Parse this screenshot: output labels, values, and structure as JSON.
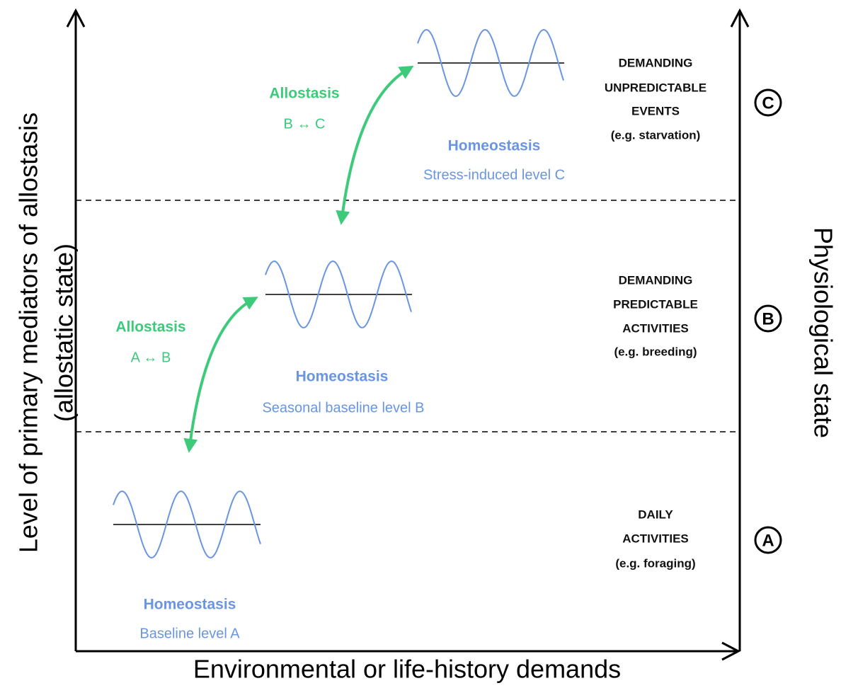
{
  "y_axis_label": {
    "lines": [
      "Level of primary mediators of allostasis",
      "(allostatic state)"
    ]
  },
  "x_axis_label": "Environmental or life-history demands",
  "right_axis_label": "Physiological state",
  "levels": [
    {
      "letter": "A",
      "homeostasis_title": "Homeostasis",
      "homeostasis_level": "Baseline level A",
      "description": [
        "DAILY",
        "ACTIVITIES",
        "(e.g. foraging)"
      ]
    },
    {
      "letter": "B",
      "homeostasis_title": "Homeostasis",
      "homeostasis_level": "Seasonal baseline level B",
      "description": [
        "DEMANDING",
        "PREDICTABLE",
        "ACTIVITIES",
        "(e.g. breeding)"
      ]
    },
    {
      "letter": "C",
      "homeostasis_title": "Homeostasis",
      "homeostasis_level": "Stress-induced level C",
      "description": [
        "DEMANDING",
        "UNPREDICTABLE",
        "EVENTS",
        "(e.g. starvation)"
      ]
    }
  ],
  "allostasis": [
    {
      "title": "Allostasis",
      "transition": "A ↔ B"
    },
    {
      "title": "Allostasis",
      "transition": "B ↔ C"
    }
  ]
}
